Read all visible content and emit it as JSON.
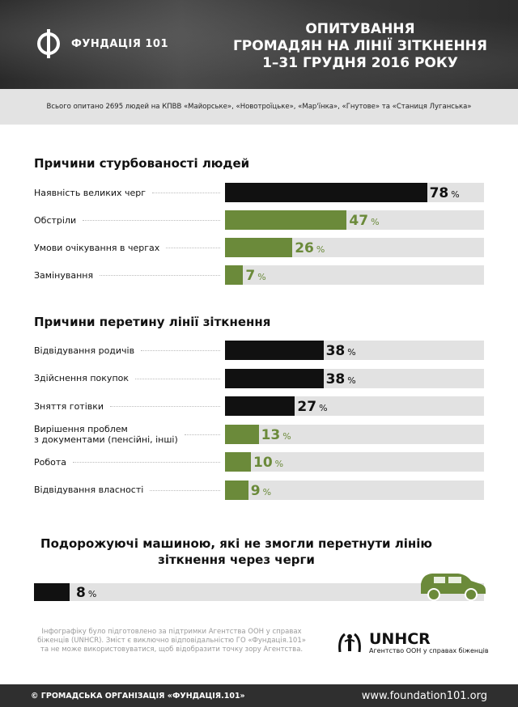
{
  "header": {
    "logo_text": "ФУНДАЦІЯ 101",
    "title_lines": [
      "ОПИТУВАННЯ",
      "ГРОМАДЯН НА ЛІНІЇ ЗІТКНЕННЯ",
      "1–31 ГРУДНЯ 2016 РОКУ"
    ]
  },
  "subtitle": "Всього опитано 2695 людей на КПВВ «Майорське», «Новотроїцьке», «Мар'їнка», «Гнутове» та «Станиця Луганська»",
  "colors": {
    "black": "#111111",
    "green": "#6b8a3a",
    "track": "#e2e2e2"
  },
  "percent_sign": "%",
  "chart_data": [
    {
      "type": "bar",
      "title": "Причини стурбованості людей",
      "unit": "%",
      "categories": [
        "Наявність великих черг",
        "Обстріли",
        "Умови очікування в чергах",
        "Замінування"
      ],
      "values": [
        78,
        47,
        26,
        7
      ],
      "colors": [
        "black",
        "green",
        "green",
        "green"
      ],
      "ylim": [
        0,
        100
      ]
    },
    {
      "type": "bar",
      "title": "Причини перетину лінії зіткнення",
      "unit": "%",
      "categories": [
        "Відвідування родичів",
        "Здійснення покупок",
        "Зняття готівки",
        "Вирішення проблем\nз документами (пенсійні, інші)",
        "Робота",
        "Відвідування власності"
      ],
      "values": [
        38,
        38,
        27,
        13,
        10,
        9
      ],
      "colors": [
        "black",
        "black",
        "black",
        "green",
        "green",
        "green"
      ],
      "ylim": [
        0,
        100
      ]
    },
    {
      "type": "bar",
      "title": "Подорожуючі машиною, які не змогли перетнути лінію зіткнення через черги",
      "unit": "%",
      "categories": [
        ""
      ],
      "values": [
        8
      ],
      "colors": [
        "black"
      ],
      "ylim": [
        0,
        100
      ]
    }
  ],
  "disclaimer": "Інфографіку було підготовлено за підтримки Агентства ООН у справах біженців (UNHCR). Зміст є виключно відповідальністю ГО «Фундація.101» та не може використовуватися, щоб відобразити точку зору Агентства.",
  "unhcr": {
    "name": "UNHCR",
    "sub": "Агентство ООН у справах біженців"
  },
  "footer": {
    "org": "© ГРОМАДСЬКА ОРГАНІЗАЦІЯ «ФУНДАЦІЯ.101»",
    "url": "www.foundation101.org"
  }
}
